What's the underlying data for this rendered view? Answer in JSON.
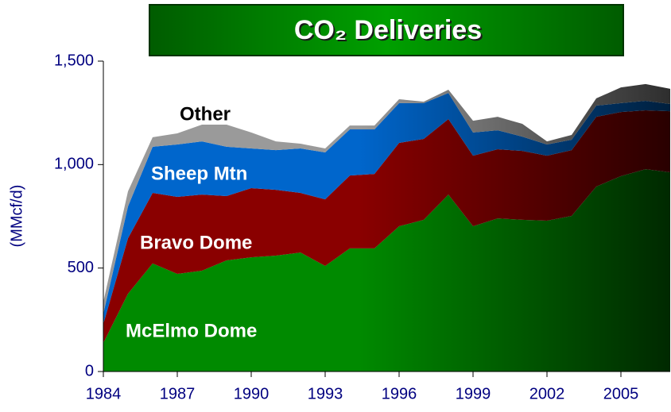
{
  "chart_data": {
    "type": "stacked_area",
    "title": "CO₂ Deliveries",
    "y_label": "(MMcf/d)",
    "x": [
      1984,
      1985,
      1986,
      1987,
      1988,
      1989,
      1990,
      1991,
      1992,
      1993,
      1994,
      1995,
      1996,
      1997,
      1998,
      1999,
      2000,
      2001,
      2002,
      2003,
      2004,
      2005,
      2006,
      2007
    ],
    "xlim": [
      1984,
      2007
    ],
    "xticks": [
      1984,
      1987,
      1990,
      1993,
      1996,
      1999,
      2002,
      2005
    ],
    "ylim": [
      0,
      1500
    ],
    "yticks": [
      0,
      500,
      {
        "value": 1000,
        "label": "1,000"
      },
      {
        "value": 1500,
        "label": "1,500"
      }
    ],
    "series": [
      {
        "name": "McElmo Dome",
        "color": "#008a00",
        "values": [
          138,
          376,
          522,
          472,
          487,
          537,
          552,
          560,
          575,
          510,
          595,
          595,
          702,
          733,
          855,
          702,
          740,
          733,
          729,
          752,
          894,
          944,
          978,
          963
        ]
      },
      {
        "name": "Bravo Dome",
        "color": "#8a0000",
        "values": [
          92,
          268,
          341,
          372,
          368,
          311,
          334,
          318,
          288,
          322,
          352,
          360,
          403,
          391,
          365,
          341,
          334,
          333,
          314,
          318,
          337,
          310,
          284,
          295
        ]
      },
      {
        "name": "Sheep Mtn",
        "color": "#0066cc",
        "values": [
          50,
          154,
          223,
          253,
          257,
          238,
          192,
          192,
          215,
          227,
          223,
          215,
          192,
          173,
          126,
          112,
          92,
          69,
          54,
          50,
          54,
          43,
          46,
          35
        ]
      },
      {
        "name": "Other",
        "color": "#9a9a9a",
        "values": [
          57,
          73,
          46,
          54,
          81,
          107,
          77,
          42,
          23,
          19,
          19,
          19,
          19,
          7,
          16,
          57,
          65,
          62,
          15,
          23,
          35,
          76,
          81,
          73
        ]
      }
    ]
  }
}
